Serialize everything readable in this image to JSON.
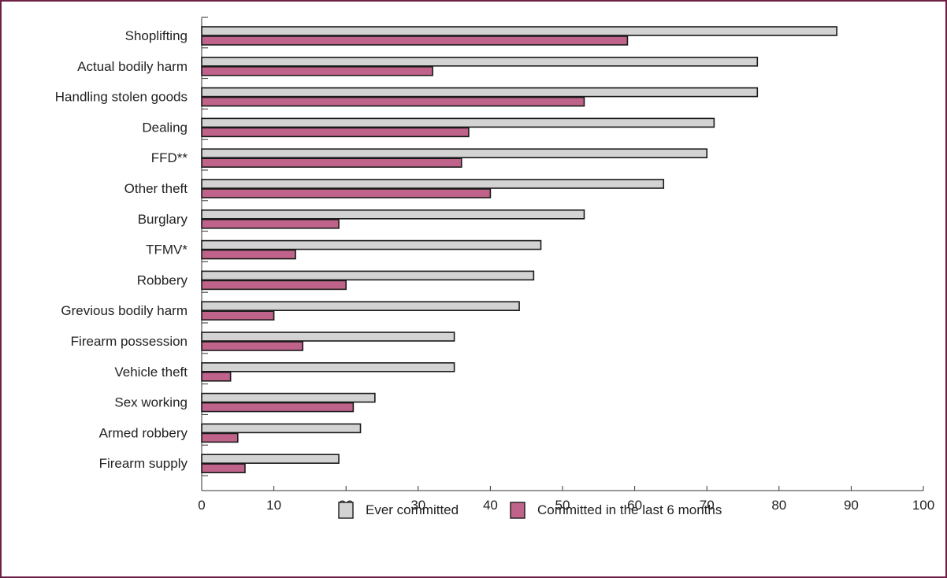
{
  "chart_data": {
    "type": "bar",
    "orientation": "horizontal",
    "categories": [
      "Shoplifting",
      "Actual bodily harm",
      "Handling stolen goods",
      "Dealing",
      "FFD**",
      "Other theft",
      "Burglary",
      "TFMV*",
      "Robbery",
      "Grevious bodily harm",
      "Firearm possession",
      "Vehicle theft",
      "Sex working",
      "Armed robbery",
      "Firearm supply"
    ],
    "series": [
      {
        "name": "Ever committed",
        "color": "#d3d3d3",
        "values": [
          88,
          77,
          77,
          71,
          70,
          64,
          53,
          47,
          46,
          44,
          35,
          35,
          24,
          22,
          19
        ]
      },
      {
        "name": "Committed in the last 6 months",
        "color": "#c0638a",
        "values": [
          59,
          32,
          53,
          37,
          36,
          40,
          19,
          13,
          20,
          10,
          14,
          4,
          21,
          5,
          6
        ]
      }
    ],
    "xlim": [
      0,
      100
    ],
    "xticks": [
      0,
      10,
      20,
      30,
      40,
      50,
      60,
      70,
      80,
      90,
      100
    ],
    "xlabel": "",
    "ylabel": "",
    "title": "",
    "grid": false,
    "legend_position": "bottom-center",
    "colors": {
      "border": "#6e1f45",
      "bar_outline": "#1a1a1a",
      "axis": "#333333"
    }
  }
}
